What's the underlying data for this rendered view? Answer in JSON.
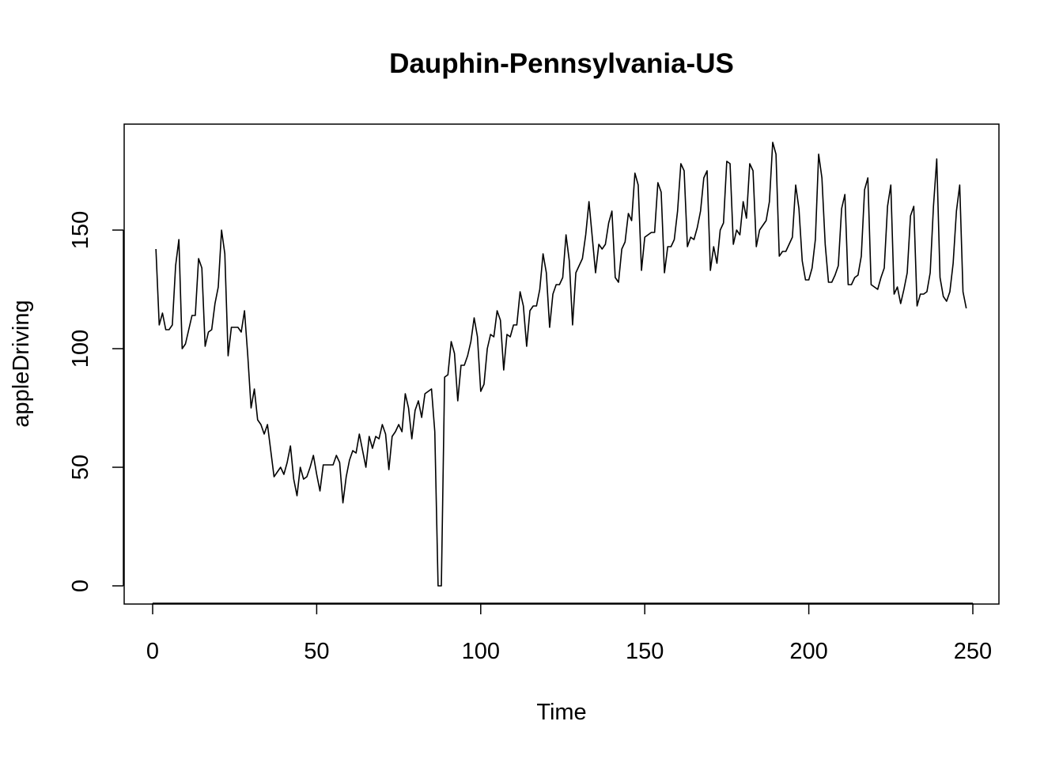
{
  "chart_data": {
    "type": "line",
    "title": "Dauphin-Pennsylvania-US",
    "xlabel": "Time",
    "ylabel": "appleDriving",
    "xlim": [
      1,
      248
    ],
    "ylim": [
      0,
      186
    ],
    "grid": false,
    "legend": "none",
    "line_color": "#000000",
    "x_ticks": [
      0,
      50,
      100,
      150,
      200,
      250
    ],
    "y_ticks": [
      0,
      50,
      100,
      150
    ],
    "x_tick_labels": [
      "0",
      "50",
      "100",
      "150",
      "200",
      "250"
    ],
    "y_tick_labels": [
      "0",
      "50",
      "100",
      "150"
    ],
    "x_start": 1,
    "values": [
      142,
      110,
      115,
      108,
      108,
      110,
      135,
      146,
      100,
      102,
      108,
      114,
      114,
      138,
      134,
      101,
      107,
      108,
      119,
      126,
      150,
      140,
      97,
      109,
      109,
      109,
      107,
      116,
      97,
      75,
      83,
      70,
      68,
      64,
      68,
      57,
      46,
      48,
      50,
      47,
      52,
      59,
      45,
      38,
      50,
      45,
      46,
      50,
      55,
      47,
      40,
      51,
      51,
      51,
      51,
      55,
      52,
      35,
      46,
      53,
      57,
      56,
      64,
      57,
      50,
      63,
      58,
      63,
      62,
      68,
      64,
      49,
      63,
      65,
      68,
      65,
      81,
      75,
      62,
      74,
      78,
      71,
      81,
      82,
      83,
      65,
      0,
      0,
      88,
      89,
      103,
      98,
      78,
      93,
      93,
      97,
      103,
      113,
      105,
      82,
      85,
      100,
      106,
      105,
      116,
      112,
      91,
      106,
      105,
      110,
      110,
      124,
      118,
      101,
      116,
      118,
      118,
      125,
      140,
      132,
      109,
      123,
      127,
      127,
      130,
      148,
      137,
      110,
      132,
      135,
      138,
      148,
      162,
      147,
      132,
      144,
      142,
      144,
      153,
      158,
      130,
      128,
      142,
      145,
      157,
      154,
      174,
      169,
      133,
      147,
      148,
      149,
      149,
      170,
      166,
      132,
      143,
      143,
      146,
      158,
      178,
      175,
      143,
      147,
      146,
      151,
      158,
      172,
      175,
      133,
      143,
      136,
      150,
      153,
      179,
      178,
      144,
      150,
      148,
      162,
      155,
      178,
      175,
      143,
      150,
      152,
      154,
      162,
      187,
      182,
      139,
      141,
      141,
      144,
      147,
      169,
      159,
      137,
      129,
      129,
      134,
      146,
      182,
      172,
      144,
      128,
      128,
      131,
      135,
      159,
      165,
      127,
      127,
      130,
      131,
      139,
      167,
      172,
      127,
      126,
      125,
      130,
      134,
      160,
      169,
      123,
      126,
      119,
      125,
      132,
      156,
      160,
      118,
      123,
      123,
      124,
      132,
      160,
      180,
      130,
      122,
      120,
      124,
      136,
      158,
      169,
      124,
      117
    ]
  }
}
